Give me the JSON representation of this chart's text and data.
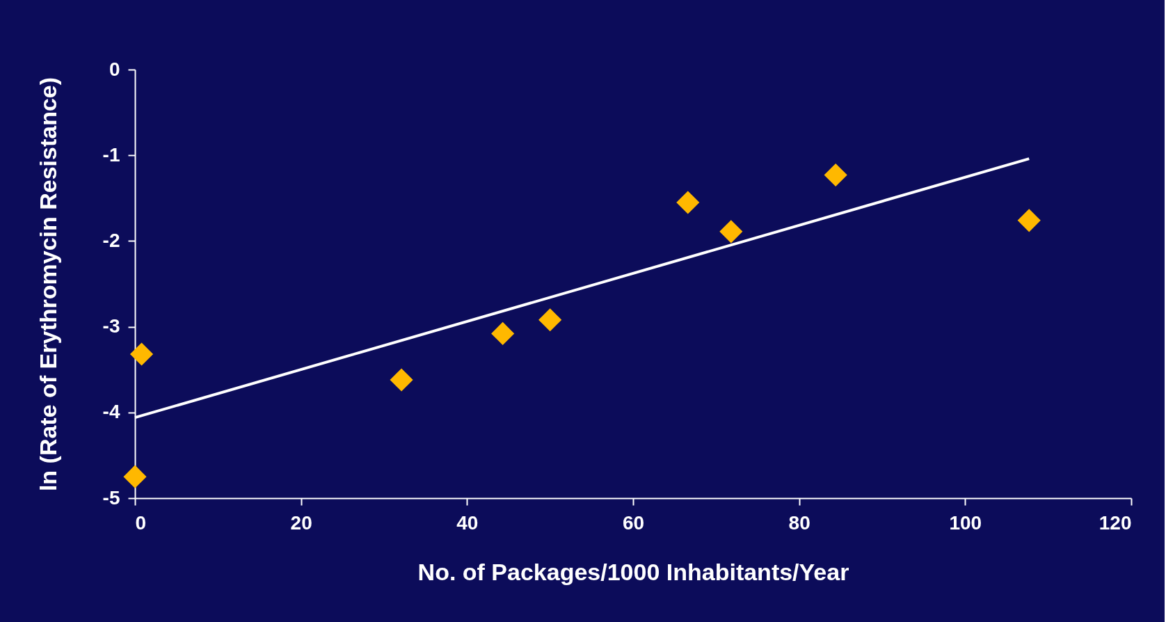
{
  "chart_data": {
    "type": "scatter",
    "xlabel": "No. of Packages/1000 Inhabitants/Year",
    "ylabel": "ln (Rate of Erythromycin Resistance)",
    "xlim": [
      0,
      120
    ],
    "xticks": [
      0,
      20,
      40,
      60,
      80,
      100,
      120
    ],
    "ylim": [
      -5,
      0
    ],
    "yticks": [
      -5,
      -4,
      -3,
      -2,
      -1,
      0
    ],
    "series": [
      {
        "color": "#ffb800",
        "marker": "diamond",
        "x": [
          0.8,
          0,
          32.1,
          44.3,
          50.0,
          66.6,
          71.8,
          84.4,
          107.7
        ],
        "values": [
          -3.32,
          -4.75,
          -3.62,
          -3.08,
          -2.92,
          -1.55,
          -1.89,
          -1.23,
          -1.76
        ]
      },
      {
        "type": "line",
        "color": "#ffffff",
        "line_style": "solid",
        "x": [
          0,
          107.7
        ],
        "values": [
          -4.06,
          -1.04
        ]
      }
    ]
  }
}
